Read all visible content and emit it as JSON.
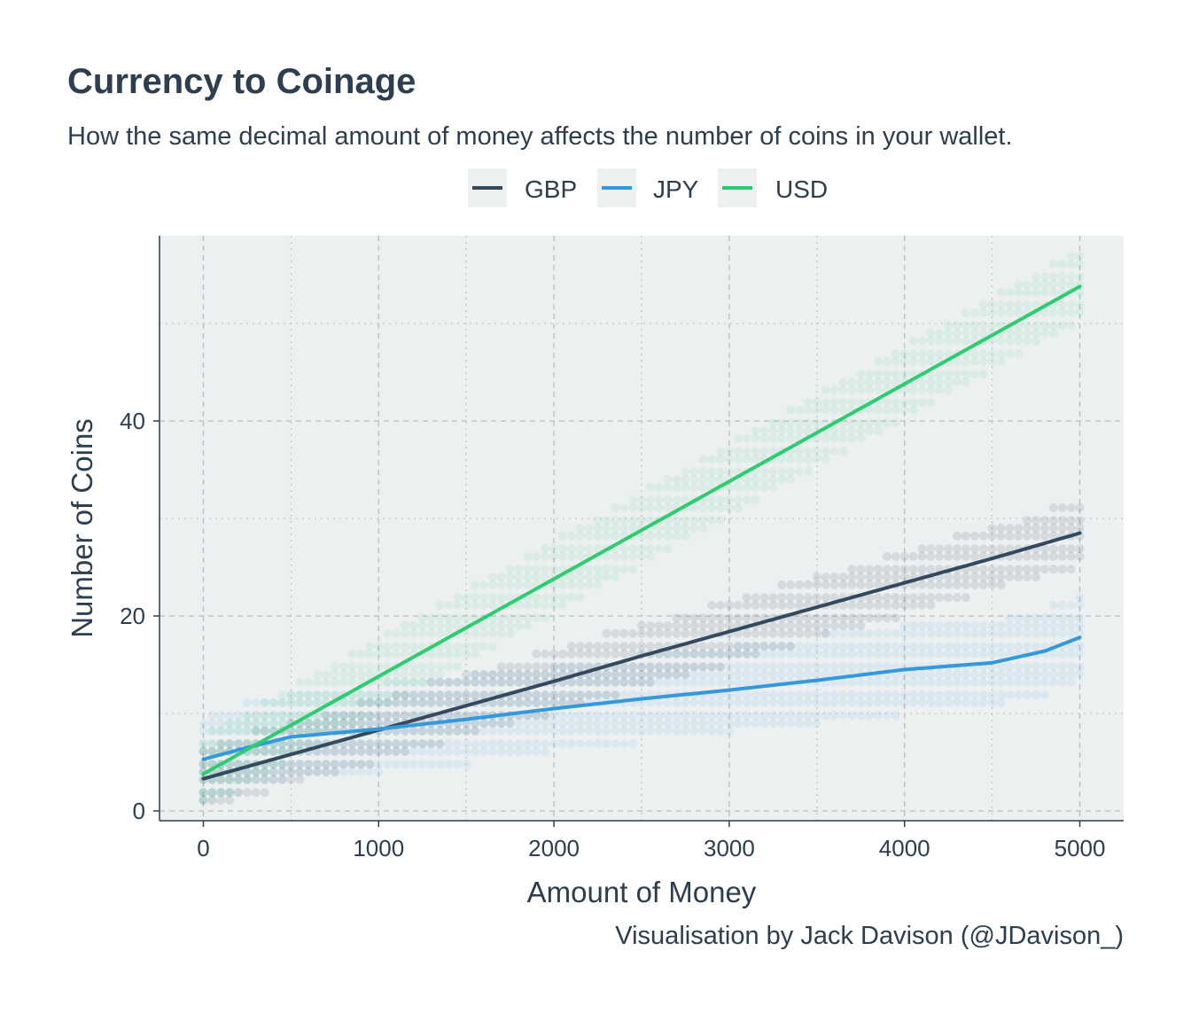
{
  "title": "Currency to Coinage",
  "subtitle": "How the same decimal amount of money affects the number of coins in your wallet.",
  "caption": "Visualisation by Jack Davison (@JDavison_)",
  "colors": {
    "GBP": "#34495e",
    "JPY": "#3498db",
    "USD": "#2ecc71",
    "panel_background": "#ecf0f1",
    "grid": "#bdbdbd",
    "text": "#2c3e50"
  },
  "chart_data": {
    "type": "scatter",
    "title": "Currency to Coinage",
    "subtitle": "How the same decimal amount of money affects the number of coins in your wallet.",
    "xlabel": "Amount of Money",
    "ylabel": "Number of Coins",
    "xlim": [
      -250,
      5250
    ],
    "ylim": [
      -1,
      59
    ],
    "x_ticks": [
      0,
      1000,
      2000,
      3000,
      4000,
      5000
    ],
    "y_ticks": [
      0,
      20,
      40
    ],
    "grid": true,
    "legend_position": "top",
    "legend": [
      "GBP",
      "JPY",
      "USD"
    ],
    "series": [
      {
        "name": "GBP",
        "x": [
          0,
          500,
          1000,
          1500,
          2000,
          2500,
          3000,
          3500,
          4000,
          4500,
          5000
        ],
        "y": [
          3.3,
          5.8,
          8.3,
          10.8,
          13.3,
          15.9,
          18.4,
          20.9,
          23.4,
          25.9,
          28.5
        ],
        "spread": 2.8
      },
      {
        "name": "JPY",
        "x": [
          0,
          250,
          500,
          750,
          1000,
          1500,
          2000,
          2500,
          3000,
          3500,
          4000,
          4500,
          4800,
          5000
        ],
        "y": [
          5.3,
          6.5,
          7.6,
          8.0,
          8.4,
          9.4,
          10.5,
          11.5,
          12.4,
          13.4,
          14.5,
          15.2,
          16.4,
          17.8
        ],
        "spread": 4.0
      },
      {
        "name": "USD",
        "x": [
          0,
          500,
          1000,
          1500,
          2000,
          2500,
          3000,
          3500,
          4000,
          4500,
          5000
        ],
        "y": [
          3.8,
          8.8,
          13.8,
          18.8,
          23.8,
          28.8,
          33.8,
          38.8,
          43.8,
          48.8,
          53.8
        ],
        "spread": 3.2
      }
    ]
  }
}
